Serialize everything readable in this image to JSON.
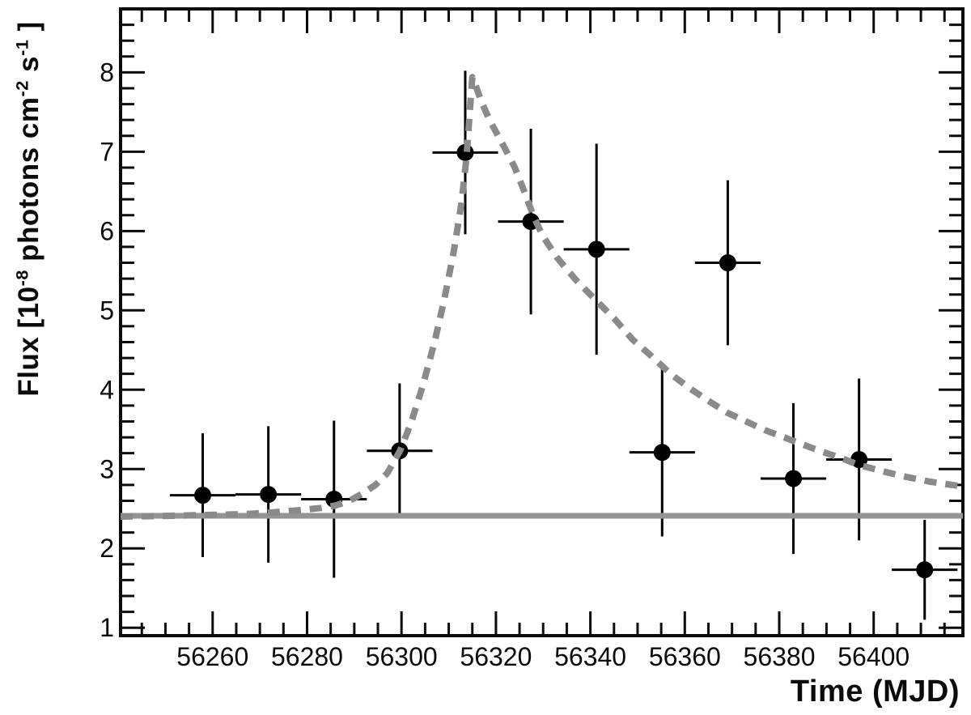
{
  "figure": {
    "background_color": "#ffffff",
    "frame_color": "#0b0b0b",
    "description": "Gamma-ray flare light curve: flux measurements with error bars, a constant quiescent-level line and a dashed exponential flare fit"
  },
  "chart_data": {
    "type": "scatter",
    "title": "",
    "xlabel": "Time (MJD)",
    "ylabel": "Flux [10-8 photons cm-2 s-1 ]",
    "ylabel_segments": [
      {
        "text": "Flux [10"
      },
      {
        "text": "-8",
        "sup": true
      },
      {
        "text": " photons cm"
      },
      {
        "text": "-2",
        "sup": true
      },
      {
        "text": " s"
      },
      {
        "text": "-1",
        "sup": true
      },
      {
        "text": " ]"
      }
    ],
    "x_range": [
      56240.5,
      56418.9
    ],
    "y_range": [
      0.9,
      8.8
    ],
    "x_major_step": 20,
    "x_minor_step": 5,
    "y_major_step": 1,
    "y_minor_step": 0.2,
    "x_major_ticks": [
      56260,
      56280,
      56300,
      56320,
      56340,
      56360,
      56380,
      56400
    ],
    "x_tick_labels": [
      "56260",
      "56280",
      "56300",
      "56320",
      "56340",
      "56360",
      "56380",
      "56400"
    ],
    "y_major_ticks": [
      1,
      2,
      3,
      4,
      5,
      6,
      7,
      8
    ],
    "y_tick_labels": [
      "1",
      "2",
      "3",
      "4",
      "5",
      "6",
      "7",
      "8"
    ],
    "grid": false,
    "legend": null,
    "series": [
      {
        "name": "flux measurements",
        "marker": "filled-circle",
        "color": "#000000",
        "points": [
          {
            "x": 56257.9,
            "y": 2.67,
            "xerr": 6.95,
            "yerr": 0.78
          },
          {
            "x": 56271.8,
            "y": 2.68,
            "xerr": 6.95,
            "yerr": 0.86
          },
          {
            "x": 56285.7,
            "y": 2.62,
            "xerr": 6.95,
            "yerr": 0.99
          },
          {
            "x": 56299.6,
            "y": 3.23,
            "xerr": 6.95,
            "yerr": 0.85
          },
          {
            "x": 56313.5,
            "y": 6.99,
            "xerr": 6.95,
            "yerr": 1.03
          },
          {
            "x": 56327.4,
            "y": 6.12,
            "xerr": 6.95,
            "yerr": 1.17
          },
          {
            "x": 56341.3,
            "y": 5.77,
            "xerr": 6.95,
            "yerr": 1.33
          },
          {
            "x": 56355.2,
            "y": 3.21,
            "xerr": 6.95,
            "yerr": 1.06
          },
          {
            "x": 56369.1,
            "y": 5.6,
            "xerr": 6.95,
            "yerr": 1.04
          },
          {
            "x": 56383.0,
            "y": 2.88,
            "xerr": 6.95,
            "yerr": 0.95
          },
          {
            "x": 56396.9,
            "y": 3.12,
            "xerr": 6.95,
            "yerr": 1.02
          },
          {
            "x": 56410.8,
            "y": 1.73,
            "xerr": 6.95,
            "yerr": 0.63
          }
        ]
      }
    ],
    "baseline": {
      "name": "quiescent flux level",
      "y": 2.41,
      "color": "#949494",
      "style": "solid",
      "width": 7
    },
    "fit_curve": {
      "name": "flare model fit",
      "color": "#8a8a8a",
      "style": "dashed",
      "width": 8,
      "peak": {
        "x": 56315.0,
        "y": 7.94
      },
      "points": [
        [
          56240.5,
          2.4
        ],
        [
          56250,
          2.41
        ],
        [
          56258,
          2.42
        ],
        [
          56266,
          2.43
        ],
        [
          56272,
          2.45
        ],
        [
          56278,
          2.48
        ],
        [
          56283,
          2.51
        ],
        [
          56286,
          2.54
        ],
        [
          56289,
          2.6
        ],
        [
          56292,
          2.7
        ],
        [
          56294.5,
          2.8
        ],
        [
          56297,
          2.95
        ],
        [
          56299.7,
          3.23
        ],
        [
          56302,
          3.58
        ],
        [
          56304.5,
          4.05
        ],
        [
          56307,
          4.6
        ],
        [
          56309,
          5.12
        ],
        [
          56311,
          5.72
        ],
        [
          56312.7,
          6.35
        ],
        [
          56313.8,
          6.95
        ],
        [
          56314.4,
          7.45
        ],
        [
          56315.0,
          7.94
        ],
        [
          56315.9,
          7.8
        ],
        [
          56317,
          7.62
        ],
        [
          56318.5,
          7.42
        ],
        [
          56320,
          7.25
        ],
        [
          56322,
          7.03
        ],
        [
          56324,
          6.8
        ],
        [
          56326,
          6.5
        ],
        [
          56328,
          6.18
        ],
        [
          56330,
          5.93
        ],
        [
          56333,
          5.66
        ],
        [
          56337,
          5.38
        ],
        [
          56341.3,
          5.12
        ],
        [
          56345,
          4.9
        ],
        [
          56349,
          4.63
        ],
        [
          56353,
          4.42
        ],
        [
          56357,
          4.2
        ],
        [
          56361,
          4.02
        ],
        [
          56365,
          3.86
        ],
        [
          56369,
          3.71
        ],
        [
          56373,
          3.6
        ],
        [
          56377,
          3.49
        ],
        [
          56381,
          3.4
        ],
        [
          56385,
          3.31
        ],
        [
          56389,
          3.22
        ],
        [
          56393,
          3.14
        ],
        [
          56397,
          3.05
        ],
        [
          56402,
          2.97
        ],
        [
          56407,
          2.9
        ],
        [
          56412,
          2.84
        ],
        [
          56418.9,
          2.78
        ]
      ]
    }
  }
}
